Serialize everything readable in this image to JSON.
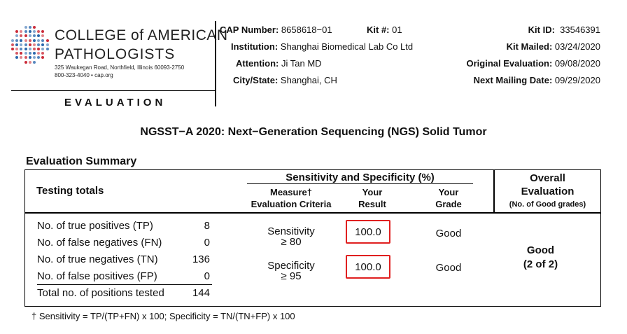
{
  "logo": {
    "line1": "COLLEGE of AMERICAN",
    "line2": "PATHOLOGISTS",
    "address": "325 Waukegan Road, Northfield, Illinois 60093-2750",
    "contact": "800-323-4040  •  cap.org"
  },
  "section_title": "EVALUATION",
  "info": {
    "cap_number_label": "CAP Number:",
    "cap_number": "8658618−01",
    "kit_num_label": "Kit #:",
    "kit_num": "01",
    "kit_id_label": "Kit ID:",
    "kit_id": "33546391",
    "institution_label": "Institution:",
    "institution": "Shanghai Biomedical Lab Co Ltd",
    "kit_mailed_label": "Kit Mailed:",
    "kit_mailed": "03/24/2020",
    "attention_label": "Attention:",
    "attention": "Ji Tan MD",
    "orig_eval_label": "Original Evaluation:",
    "orig_eval": "09/08/2020",
    "city_label": "City/State:",
    "city": "Shanghai, CH",
    "next_mailing_label": "Next Mailing Date:",
    "next_mailing": "09/29/2020"
  },
  "main_title": "NGSST−A 2020: Next−Generation Sequencing (NGS) Solid Tumor",
  "summary_title": "Evaluation Summary",
  "table_headers": {
    "testing_totals": "Testing totals",
    "sens_spec": "Sensitivity and Specificity (%)",
    "measure_line1": "Measure†",
    "measure_line2": "Evaluation Criteria",
    "your_result_line1": "Your",
    "your_result_line2": "Result",
    "your_grade_line1": "Your",
    "your_grade_line2": "Grade",
    "overall_line1": "Overall",
    "overall_line2": "Evaluation",
    "overall_line3": "(No. of Good grades)"
  },
  "totals": [
    {
      "label": "No. of true positives (TP)",
      "value": "8"
    },
    {
      "label": "No. of false negatives (FN)",
      "value": "0"
    },
    {
      "label": "No. of true negatives (TN)",
      "value": "136"
    },
    {
      "label": "No. of false positives (FP)",
      "value": "0"
    },
    {
      "label": "Total no. of positions tested",
      "value": "144"
    }
  ],
  "measures": [
    {
      "name": "Sensitivity",
      "criteria": "≥ 80",
      "result": "100.0",
      "grade": "Good"
    },
    {
      "name": "Specificity",
      "criteria": "≥ 95",
      "result": "100.0",
      "grade": "Good"
    }
  ],
  "overall": {
    "grade": "Good",
    "count": "(2 of 2)"
  },
  "footnote": "† Sensitivity = TP/(TP+FN) x 100; Specificity = TN/(TN+FP) x 100",
  "colors": {
    "highlight_box": "#e02020",
    "logo_blue": "#1f5fa8",
    "logo_red": "#c8202e"
  }
}
